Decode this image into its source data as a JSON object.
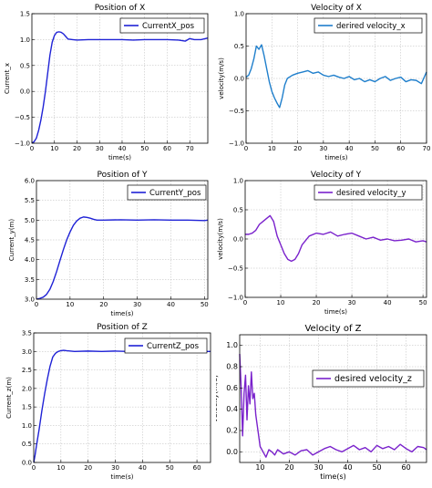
{
  "colors": {
    "blue": "#1f22d6",
    "purple": "#7a22cc",
    "grid": "#b8b8b8",
    "axis": "#000000"
  },
  "chart_data": [
    {
      "type": "line",
      "title": "Position of X",
      "xlabel": "time(s)",
      "ylabel": "Current_x",
      "xlim": [
        0,
        78
      ],
      "ylim": [
        -1.0,
        1.5
      ],
      "xticks": [
        0,
        10,
        20,
        30,
        40,
        50,
        60,
        70
      ],
      "yticks": [
        -1.0,
        -0.5,
        0.0,
        0.5,
        1.0,
        1.5
      ],
      "ytick_labels": [
        "−1.0",
        "−0.5",
        "0.0",
        "0.5",
        "1.0",
        "1.5"
      ],
      "grid": true,
      "legend_position": "top-right",
      "series": [
        {
          "name": "CurrentX_pos",
          "color": "#1f22d6",
          "x": [
            0,
            1,
            2,
            3,
            4,
            5,
            6,
            7,
            8,
            9,
            10,
            11,
            12,
            13,
            14,
            15,
            16,
            18,
            20,
            25,
            30,
            35,
            40,
            45,
            50,
            55,
            60,
            65,
            68,
            70,
            72,
            75,
            78
          ],
          "y": [
            -1.0,
            -0.97,
            -0.9,
            -0.75,
            -0.55,
            -0.3,
            0.0,
            0.35,
            0.7,
            0.95,
            1.08,
            1.14,
            1.15,
            1.14,
            1.11,
            1.06,
            1.01,
            1.0,
            0.99,
            1.0,
            1.0,
            1.0,
            1.0,
            0.99,
            1.0,
            1.0,
            1.0,
            0.99,
            0.97,
            1.02,
            1.0,
            1.0,
            1.03
          ]
        }
      ]
    },
    {
      "type": "line",
      "title": "Velocity of X",
      "xlabel": "time(s)",
      "ylabel": "velocity(m/s)",
      "xlim": [
        0,
        70
      ],
      "ylim": [
        -1.0,
        1.0
      ],
      "xticks": [
        0,
        10,
        20,
        30,
        40,
        50,
        60,
        70
      ],
      "yticks": [
        -1.0,
        -0.5,
        0.0,
        0.5,
        1.0
      ],
      "ytick_labels": [
        "−1.0",
        "−0.5",
        "0.0",
        "0.5",
        "1.0"
      ],
      "grid": true,
      "legend_position": "top-right",
      "series": [
        {
          "name": "derired velocity_x",
          "color": "#1f7fcc",
          "x": [
            0,
            1,
            2,
            3,
            4,
            5,
            6,
            7,
            8,
            9,
            10,
            11,
            12,
            13,
            14,
            15,
            16,
            18,
            20,
            22,
            24,
            26,
            28,
            30,
            32,
            34,
            36,
            38,
            40,
            42,
            44,
            46,
            48,
            50,
            52,
            54,
            56,
            58,
            60,
            62,
            64,
            66,
            68,
            70
          ],
          "y": [
            0.02,
            0.05,
            0.15,
            0.3,
            0.5,
            0.45,
            0.52,
            0.35,
            0.15,
            -0.05,
            -0.2,
            -0.3,
            -0.38,
            -0.45,
            -0.3,
            -0.1,
            0.0,
            0.05,
            0.08,
            0.1,
            0.12,
            0.08,
            0.1,
            0.05,
            0.03,
            0.05,
            0.02,
            0.0,
            0.03,
            -0.02,
            0.0,
            -0.05,
            -0.02,
            -0.05,
            0.0,
            0.03,
            -0.03,
            0.0,
            0.02,
            -0.05,
            -0.02,
            -0.03,
            -0.08,
            0.1
          ]
        }
      ]
    },
    {
      "type": "line",
      "title": "Position of Y",
      "xlabel": "time(s)",
      "ylabel": "Current_y(m)",
      "xlim": [
        0,
        51
      ],
      "ylim": [
        3.0,
        6.0
      ],
      "xticks": [
        0,
        10,
        20,
        30,
        40,
        50
      ],
      "yticks": [
        3.0,
        3.5,
        4.0,
        4.5,
        5.0,
        5.5,
        6.0
      ],
      "ytick_labels": [
        "3.0",
        "3.5",
        "4.0",
        "4.5",
        "5.0",
        "5.5",
        "6.0"
      ],
      "grid": true,
      "legend_position": "top-right",
      "series": [
        {
          "name": "CurrentY_pos",
          "color": "#1f22d6",
          "x": [
            0,
            1,
            2,
            3,
            4,
            5,
            6,
            7,
            8,
            9,
            10,
            11,
            12,
            13,
            14,
            15,
            16,
            17,
            18,
            20,
            25,
            30,
            35,
            40,
            45,
            50,
            51
          ],
          "y": [
            3.0,
            3.02,
            3.05,
            3.12,
            3.25,
            3.45,
            3.7,
            3.98,
            4.25,
            4.5,
            4.7,
            4.87,
            4.98,
            5.05,
            5.08,
            5.07,
            5.05,
            5.02,
            5.0,
            5.0,
            5.01,
            5.0,
            5.01,
            5.0,
            5.0,
            4.99,
            5.0
          ]
        }
      ]
    },
    {
      "type": "line",
      "title": "Velocity of Y",
      "xlabel": "time(s)",
      "ylabel": "velocity(m/s)",
      "xlim": [
        0,
        51
      ],
      "ylim": [
        -1.0,
        1.0
      ],
      "xticks": [
        0,
        10,
        20,
        30,
        40,
        50
      ],
      "yticks": [
        -1.0,
        -0.5,
        0.0,
        0.5,
        1.0
      ],
      "ytick_labels": [
        "−1.0",
        "−0.5",
        "0.0",
        "0.5",
        "1.0"
      ],
      "grid": true,
      "legend_position": "top-right",
      "series": [
        {
          "name": "desired velocity_y",
          "color": "#7a22cc",
          "x": [
            0,
            1,
            2,
            3,
            4,
            5,
            6,
            7,
            8,
            9,
            10,
            11,
            12,
            13,
            14,
            15,
            16,
            18,
            20,
            22,
            24,
            26,
            28,
            30,
            32,
            34,
            36,
            38,
            40,
            42,
            44,
            46,
            48,
            50,
            51
          ],
          "y": [
            0.08,
            0.08,
            0.1,
            0.15,
            0.25,
            0.3,
            0.35,
            0.4,
            0.3,
            0.05,
            -0.1,
            -0.25,
            -0.35,
            -0.38,
            -0.35,
            -0.25,
            -0.1,
            0.05,
            0.1,
            0.08,
            0.12,
            0.05,
            0.08,
            0.1,
            0.05,
            0.0,
            0.03,
            -0.02,
            0.0,
            -0.03,
            -0.02,
            0.0,
            -0.05,
            -0.03,
            -0.05
          ]
        }
      ]
    },
    {
      "type": "line",
      "title": "Position of Z",
      "xlabel": "time(s)",
      "ylabel": "Current_z(m)",
      "xlim": [
        0,
        65
      ],
      "ylim": [
        0.0,
        3.5
      ],
      "xticks": [
        0,
        10,
        20,
        30,
        40,
        50,
        60
      ],
      "yticks": [
        0.0,
        0.5,
        1.0,
        1.5,
        2.0,
        2.5,
        3.0,
        3.5
      ],
      "ytick_labels": [
        "0.0",
        "0.5",
        "1.0",
        "1.5",
        "2.0",
        "2.5",
        "3.0",
        "3.5"
      ],
      "grid": true,
      "legend_position": "top-right",
      "series": [
        {
          "name": "CurrentZ_pos",
          "color": "#1f22d6",
          "x": [
            0,
            0.5,
            1,
            2,
            3,
            4,
            5,
            6,
            7,
            8,
            9,
            10,
            11,
            12,
            15,
            20,
            25,
            30,
            35,
            40,
            45,
            50,
            55,
            60,
            65
          ],
          "y": [
            0.0,
            0.2,
            0.45,
            0.9,
            1.4,
            1.85,
            2.25,
            2.6,
            2.85,
            2.95,
            3.0,
            3.02,
            3.03,
            3.02,
            3.0,
            3.01,
            3.0,
            3.01,
            3.0,
            3.0,
            3.01,
            3.0,
            3.0,
            3.0,
            3.0
          ]
        }
      ]
    },
    {
      "type": "line",
      "title": "Velocity of Z",
      "xlabel": "time(s)",
      "ylabel": "velocity(m/s)",
      "xlim": [
        3,
        67
      ],
      "ylim": [
        -0.1,
        1.1
      ],
      "xticks": [
        10,
        20,
        30,
        40,
        50,
        60
      ],
      "yticks": [
        0.0,
        0.2,
        0.4,
        0.6,
        0.8,
        1.0
      ],
      "ytick_labels": [
        "0.0",
        "0.2",
        "0.4",
        "0.6",
        "0.8",
        "1.0"
      ],
      "grid": true,
      "legend_position": "right",
      "series": [
        {
          "name": "desired velocity_z",
          "color": "#7a22cc",
          "x": [
            3,
            3.5,
            4,
            4.5,
            5,
            5.5,
            6,
            6.5,
            7,
            7.5,
            8,
            8.5,
            9,
            9.5,
            10,
            11,
            12,
            13,
            14,
            15,
            16,
            18,
            20,
            22,
            24,
            26,
            28,
            30,
            32,
            34,
            36,
            38,
            40,
            42,
            44,
            46,
            48,
            50,
            52,
            54,
            56,
            58,
            60,
            62,
            64,
            66,
            67
          ],
          "y": [
            0.92,
            0.6,
            0.15,
            0.55,
            0.72,
            0.3,
            0.62,
            0.45,
            0.75,
            0.5,
            0.55,
            0.35,
            0.25,
            0.15,
            0.05,
            0.0,
            -0.05,
            0.02,
            0.0,
            -0.03,
            0.02,
            -0.02,
            0.0,
            -0.03,
            0.01,
            0.02,
            -0.03,
            0.0,
            0.03,
            0.05,
            0.02,
            0.0,
            0.03,
            0.06,
            0.02,
            0.04,
            0.0,
            0.06,
            0.03,
            0.05,
            0.02,
            0.07,
            0.03,
            0.0,
            0.05,
            0.04,
            0.02
          ]
        }
      ]
    }
  ]
}
